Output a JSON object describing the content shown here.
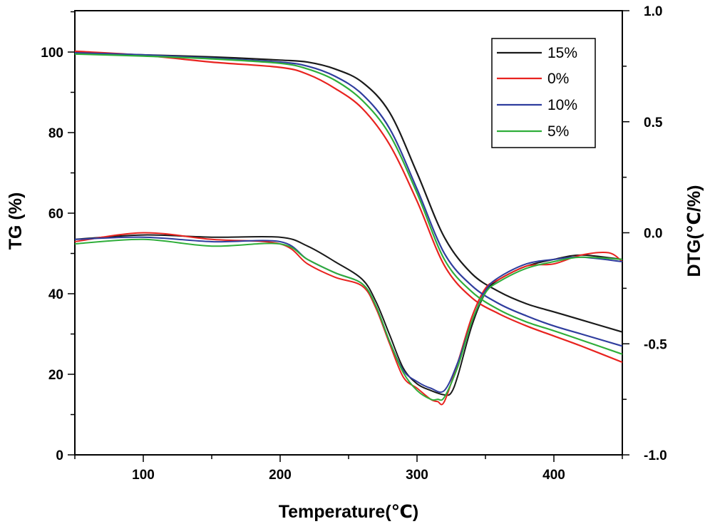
{
  "chart_data": {
    "type": "line",
    "title": "",
    "xlabel": "Temperature(℃)",
    "ylabel": "TG (%)",
    "y2label": "DTG(℃/%)",
    "xlim": [
      50,
      450
    ],
    "ylim": [
      0,
      110
    ],
    "y2lim": [
      -1.0,
      1.0
    ],
    "grid": false,
    "legend_position": "top-right",
    "x_ticks": [
      {
        "value": 100,
        "label": "100"
      },
      {
        "value": 200,
        "label": "200"
      },
      {
        "value": 300,
        "label": "300"
      },
      {
        "value": 400,
        "label": "400"
      }
    ],
    "y_ticks": [
      {
        "value": 0,
        "label": "0"
      },
      {
        "value": 20,
        "label": "20"
      },
      {
        "value": 40,
        "label": "40"
      },
      {
        "value": 60,
        "label": "60"
      },
      {
        "value": 80,
        "label": "80"
      },
      {
        "value": 100,
        "label": "100"
      }
    ],
    "y2_ticks": [
      {
        "value": -1.0,
        "label": "-1.0"
      },
      {
        "value": -0.5,
        "label": "-0.5"
      },
      {
        "value": 0.0,
        "label": "0.0"
      },
      {
        "value": 0.5,
        "label": "0.5"
      },
      {
        "value": 1.0,
        "label": "1.0"
      }
    ],
    "series": [
      {
        "name": "15%",
        "color": "#1a1a1a",
        "tg": {
          "x": [
            50,
            100,
            150,
            200,
            220,
            240,
            260,
            280,
            300,
            320,
            340,
            360,
            380,
            400,
            420,
            450
          ],
          "y": [
            99.8,
            99.3,
            98.8,
            98.0,
            97.5,
            95.8,
            92.5,
            85.0,
            70.0,
            54.0,
            45.0,
            40.5,
            37.5,
            35.5,
            33.5,
            30.5
          ]
        },
        "dtg": {
          "x": [
            50,
            100,
            150,
            200,
            220,
            240,
            260,
            270,
            280,
            290,
            300,
            310,
            320,
            325,
            330,
            340,
            350,
            360,
            380,
            400,
            420,
            450
          ],
          "y": [
            -0.03,
            -0.01,
            -0.02,
            -0.02,
            -0.06,
            -0.13,
            -0.21,
            -0.31,
            -0.46,
            -0.61,
            -0.68,
            -0.71,
            -0.73,
            -0.72,
            -0.64,
            -0.42,
            -0.27,
            -0.21,
            -0.15,
            -0.12,
            -0.1,
            -0.12
          ]
        }
      },
      {
        "name": "0%",
        "color": "#e8231f",
        "tg": {
          "x": [
            50,
            100,
            150,
            200,
            220,
            240,
            260,
            280,
            300,
            320,
            340,
            360,
            380,
            400,
            420,
            450
          ],
          "y": [
            100.2,
            99.2,
            97.5,
            96.2,
            94.5,
            91.0,
            86.0,
            77.0,
            63.0,
            47.0,
            39.0,
            35.0,
            32.0,
            29.5,
            27.0,
            23.0
          ]
        },
        "dtg": {
          "x": [
            50,
            100,
            150,
            200,
            220,
            240,
            260,
            270,
            280,
            290,
            300,
            310,
            315,
            320,
            330,
            340,
            350,
            360,
            380,
            400,
            420,
            440,
            450
          ],
          "y": [
            -0.04,
            0.0,
            -0.03,
            -0.05,
            -0.14,
            -0.2,
            -0.24,
            -0.34,
            -0.5,
            -0.65,
            -0.7,
            -0.75,
            -0.76,
            -0.76,
            -0.58,
            -0.38,
            -0.25,
            -0.21,
            -0.15,
            -0.14,
            -0.1,
            -0.09,
            -0.13
          ]
        }
      },
      {
        "name": "10%",
        "color": "#2f3d9e",
        "tg": {
          "x": [
            50,
            100,
            150,
            200,
            220,
            240,
            260,
            280,
            300,
            320,
            340,
            360,
            380,
            400,
            420,
            450
          ],
          "y": [
            99.8,
            99.3,
            98.5,
            97.5,
            96.5,
            94.0,
            89.5,
            81.0,
            66.0,
            50.0,
            42.0,
            37.5,
            34.5,
            32.0,
            30.0,
            27.0
          ]
        },
        "dtg": {
          "x": [
            50,
            100,
            150,
            200,
            220,
            240,
            260,
            270,
            280,
            290,
            300,
            310,
            320,
            330,
            340,
            350,
            360,
            380,
            400,
            420,
            450
          ],
          "y": [
            -0.03,
            -0.02,
            -0.04,
            -0.04,
            -0.12,
            -0.18,
            -0.23,
            -0.33,
            -0.49,
            -0.62,
            -0.67,
            -0.7,
            -0.71,
            -0.58,
            -0.4,
            -0.26,
            -0.2,
            -0.14,
            -0.12,
            -0.11,
            -0.13
          ]
        }
      },
      {
        "name": "5%",
        "color": "#2fae3a",
        "tg": {
          "x": [
            50,
            100,
            150,
            200,
            220,
            240,
            260,
            280,
            300,
            320,
            340,
            360,
            380,
            400,
            420,
            450
          ],
          "y": [
            99.5,
            99.0,
            98.3,
            97.2,
            95.8,
            93.0,
            88.0,
            79.5,
            65.0,
            48.5,
            40.5,
            36.0,
            33.0,
            30.8,
            28.5,
            25.0
          ]
        },
        "dtg": {
          "x": [
            50,
            100,
            150,
            200,
            220,
            240,
            260,
            270,
            280,
            290,
            300,
            310,
            315,
            320,
            330,
            340,
            350,
            360,
            380,
            400,
            420,
            450
          ],
          "y": [
            -0.05,
            -0.03,
            -0.06,
            -0.05,
            -0.12,
            -0.18,
            -0.23,
            -0.33,
            -0.49,
            -0.63,
            -0.71,
            -0.75,
            -0.75,
            -0.74,
            -0.6,
            -0.4,
            -0.27,
            -0.22,
            -0.16,
            -0.13,
            -0.11,
            -0.12
          ]
        }
      }
    ]
  }
}
